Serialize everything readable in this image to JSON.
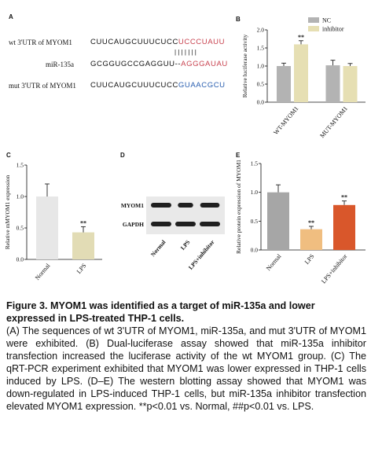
{
  "panel_letters": {
    "a": "A",
    "b": "B",
    "c": "C",
    "d": "D",
    "e": "E"
  },
  "panel_a": {
    "wt_label": "wt 3'UTR of MYOM1",
    "wt_seq_black": "CUUCAUGCUUUCUCC",
    "wt_seq_red": "UCCCUAUU",
    "pairing": "| | | | | | |",
    "mir_label": "miR-135a",
    "mir_seq_black": "GCGGUGCCGAGGUU--",
    "mir_seq_red": "AGGGAUAU",
    "mut_label": "mut 3'UTR of MYOM1",
    "mut_seq_black": "CUUCAUGCUUUCUCC",
    "mut_seq_blue": "GUAACGCU"
  },
  "colors": {
    "nc": "#b3b3b3",
    "inhibitor": "#e6dfb3",
    "normal": "#e7e7e7",
    "lps": "#e2dcb5",
    "normal_e": "#a6a6a6",
    "lps_e": "#f0be80",
    "lps_inhibitor_e": "#d9572b",
    "red_seq": "#c8424f",
    "blue_seq": "#2a5fb0"
  },
  "chart_data": [
    {
      "panel": "B",
      "type": "bar",
      "categories": [
        "WT-MYOM1",
        "MUT-MYOM1"
      ],
      "series": [
        {
          "name": "NC",
          "values": [
            1.0,
            1.02
          ],
          "errors": [
            0.08,
            0.14
          ]
        },
        {
          "name": "inhibitor",
          "values": [
            1.6,
            1.0
          ],
          "errors": [
            0.1,
            0.07
          ]
        }
      ],
      "ylabel": "Relative luciferase activity",
      "ylim": [
        0.0,
        2.0
      ],
      "yticks": [
        "0.0",
        "0.5",
        "1.0",
        "1.5",
        "2.0"
      ],
      "annotations": [
        "**"
      ],
      "legend": "top-right"
    },
    {
      "panel": "C",
      "type": "bar",
      "categories": [
        "Normal",
        "LPS"
      ],
      "values": [
        1.0,
        0.43
      ],
      "errors": [
        0.2,
        0.09
      ],
      "ylabel": "Relative mMYOM1 expression",
      "ylim": [
        0.0,
        1.5
      ],
      "yticks": [
        "0.0",
        "0.5",
        "1.0",
        "1.5"
      ],
      "annotations": [
        "**"
      ]
    },
    {
      "panel": "E",
      "type": "bar",
      "categories": [
        "Normal",
        "LPS",
        "LPS+inhibitor"
      ],
      "values": [
        1.0,
        0.36,
        0.78
      ],
      "errors": [
        0.13,
        0.05,
        0.07
      ],
      "ylabel": "Relative protein expression of MYOM1",
      "ylim": [
        0.0,
        1.5
      ],
      "yticks": [
        "0.0",
        "0.5",
        "1.0",
        "1.5"
      ],
      "annotations": [
        "**",
        "**"
      ]
    }
  ],
  "panel_d": {
    "bands": [
      "MYOM1",
      "GAPDH"
    ],
    "lanes": [
      "Normal",
      "LPS",
      "LPS+inhibitor"
    ]
  },
  "caption": {
    "title": "Figure 3. MYOM1 was identified as a target of miR-135a and lower expressed in LPS-treated THP-1 cells.",
    "body": "(A) The sequences of wt 3'UTR of MYOM1, miR-135a, and mut 3'UTR of MYOM1 were exhibited. (B) Dual-luciferase assay showed that miR-135a inhibitor transfection increased the luciferase activity of the wt MYOM1 group. (C) The qRT-PCR experiment exhibited that MYOM1 was lower expressed in THP-1 cells induced by LPS. (D–E) The western blotting assay showed that MYOM1 was down-regulated in LPS-induced THP-1 cells, but miR-135a inhibitor transfection elevated MYOM1 expression. **p<0.01 vs. Normal, ##p<0.01 vs. LPS."
  }
}
